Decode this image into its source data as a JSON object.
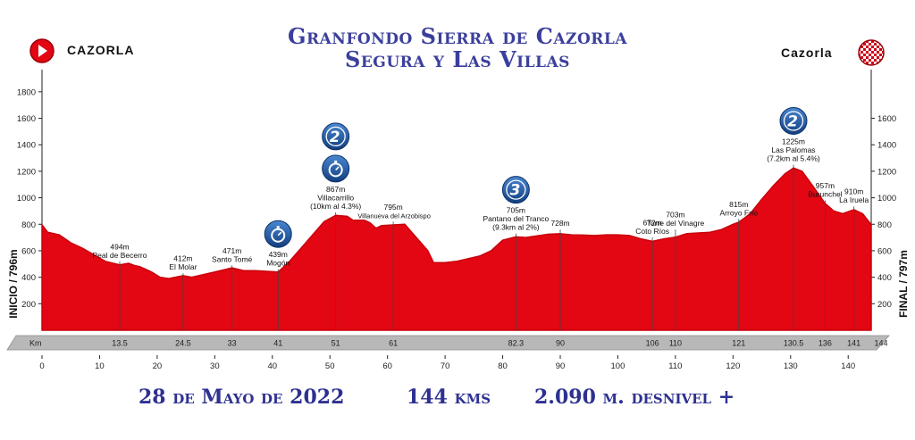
{
  "header": {
    "title_line1": "Granfondo Sierra de Cazorla",
    "title_line2": "Segura y Las Villas",
    "start_town": "CAZORLA",
    "finish_town": "Cazorla"
  },
  "footer": {
    "date": "28 de Mayo de 2022",
    "distance": "144 kms",
    "climbing": "2.090 m. desnivel +"
  },
  "colors": {
    "profile_fill": "#e30613",
    "profile_top": "#c8000a",
    "title_blue": "#3b3f9c",
    "badge_blue": "#1d5aa8",
    "km_bar": "#b8b8b8"
  },
  "chart_data": {
    "type": "area",
    "title": "Granfondo Sierra de Cazorla Segura y Las Villas",
    "xlabel": "",
    "ylabel_left": "INICIO / 796m",
    "ylabel_right": "FINAL / 797m",
    "xlim": [
      0,
      144
    ],
    "ylim": [
      0,
      1900
    ],
    "x_ticks": [
      0,
      10,
      20,
      30,
      40,
      50,
      60,
      70,
      80,
      90,
      100,
      110,
      120,
      130,
      140
    ],
    "y_ticks_left": [
      200,
      400,
      600,
      800,
      1000,
      1200,
      1400,
      1600,
      1800
    ],
    "y_ticks_right": [
      200,
      400,
      600,
      800,
      1000,
      1200,
      1400,
      1600
    ],
    "km_bar_label": "Km",
    "km_bar_marks": [
      "13.5",
      "24.5",
      "33",
      "41",
      "51",
      "61",
      "82.3",
      "90",
      "106",
      "110",
      "121",
      "130.5",
      "136",
      "141",
      "144"
    ],
    "km_bar_positions": [
      13.5,
      24.5,
      33,
      41,
      51,
      61,
      82.3,
      90,
      106,
      110,
      121,
      130.5,
      136,
      141,
      144
    ],
    "profile": [
      [
        0,
        796
      ],
      [
        1,
        740
      ],
      [
        3,
        720
      ],
      [
        5,
        660
      ],
      [
        7,
        620
      ],
      [
        9,
        570
      ],
      [
        11,
        520
      ],
      [
        13.5,
        494
      ],
      [
        15,
        505
      ],
      [
        16,
        490
      ],
      [
        17,
        480
      ],
      [
        19,
        440
      ],
      [
        20.5,
        400
      ],
      [
        22,
        390
      ],
      [
        24.5,
        412
      ],
      [
        26,
        400
      ],
      [
        28,
        420
      ],
      [
        30,
        440
      ],
      [
        33,
        471
      ],
      [
        35,
        450
      ],
      [
        37,
        450
      ],
      [
        39,
        445
      ],
      [
        41,
        439
      ],
      [
        43,
        520
      ],
      [
        45,
        620
      ],
      [
        47,
        720
      ],
      [
        49,
        820
      ],
      [
        51,
        867
      ],
      [
        53,
        860
      ],
      [
        54,
        830
      ],
      [
        56,
        830
      ],
      [
        57,
        810
      ],
      [
        58,
        770
      ],
      [
        59,
        790
      ],
      [
        61,
        795
      ],
      [
        63,
        800
      ],
      [
        65,
        700
      ],
      [
        67,
        600
      ],
      [
        68,
        510
      ],
      [
        70,
        510
      ],
      [
        72,
        520
      ],
      [
        74,
        540
      ],
      [
        76,
        560
      ],
      [
        78,
        600
      ],
      [
        80,
        680
      ],
      [
        82.3,
        705
      ],
      [
        84,
        700
      ],
      [
        86,
        712
      ],
      [
        88,
        725
      ],
      [
        90,
        728
      ],
      [
        92,
        720
      ],
      [
        94,
        718
      ],
      [
        96,
        715
      ],
      [
        98,
        720
      ],
      [
        100,
        720
      ],
      [
        102,
        715
      ],
      [
        104,
        690
      ],
      [
        106,
        672
      ],
      [
        108,
        690
      ],
      [
        110,
        703
      ],
      [
        112,
        730
      ],
      [
        116,
        740
      ],
      [
        118,
        760
      ],
      [
        120,
        800
      ],
      [
        121,
        815
      ],
      [
        123,
        880
      ],
      [
        125,
        990
      ],
      [
        127,
        1090
      ],
      [
        129,
        1180
      ],
      [
        130.5,
        1225
      ],
      [
        132,
        1200
      ],
      [
        134,
        1080
      ],
      [
        136,
        957
      ],
      [
        137.5,
        900
      ],
      [
        139,
        880
      ],
      [
        141,
        910
      ],
      [
        142.5,
        880
      ],
      [
        144,
        797
      ]
    ],
    "points": [
      {
        "km": 13.5,
        "alt_label": "494m",
        "name": "Peal de Becerro",
        "extra": "",
        "label_alt": 520
      },
      {
        "km": 24.5,
        "alt_label": "412m",
        "name": "El Molar",
        "extra": "",
        "label_alt": 430
      },
      {
        "km": 33,
        "alt_label": "471m",
        "name": "Santo Tomé",
        "extra": "",
        "label_alt": 490
      },
      {
        "km": 41,
        "alt_label": "439m",
        "name": "Mogón",
        "extra": "",
        "label_alt": 460
      },
      {
        "km": 51,
        "alt_label": "867m",
        "name": "Villacarrillo",
        "extra": "(10km al 4.3%)",
        "label_alt": 890
      },
      {
        "km": 61,
        "alt_label": "795m",
        "name": "Villanueva del Arzobispo",
        "extra": "",
        "label_alt": 820
      },
      {
        "km": 82.3,
        "alt_label": "705m",
        "name": "Pantano del Tranco",
        "extra": "(9.3km al 2%)",
        "label_alt": 730
      },
      {
        "km": 90,
        "alt_label": "728m",
        "name": "",
        "extra": "",
        "label_alt": 760
      },
      {
        "km": 106,
        "alt_label": "672m",
        "name": "Coto Ríos",
        "extra": "",
        "label_alt": 700
      },
      {
        "km": 110,
        "alt_label": "703m",
        "name": "Torre del Vinagre",
        "extra": "",
        "label_alt": 760
      },
      {
        "km": 121,
        "alt_label": "815m",
        "name": "Arroyo Frío",
        "extra": "",
        "label_alt": 840
      },
      {
        "km": 130.5,
        "alt_label": "1225m",
        "name": "Las Palomas",
        "extra": "(7.2km al 5.4%)",
        "label_alt": 1250
      },
      {
        "km": 136,
        "alt_label": "957m",
        "name": "Burunchel",
        "extra": "",
        "label_alt": 980
      },
      {
        "km": 141,
        "alt_label": "910m",
        "name": "La Iruela",
        "extra": "",
        "label_alt": 935
      }
    ],
    "badges": [
      {
        "km": 41,
        "kind": "timer",
        "text": ""
      },
      {
        "km": 51,
        "kind": "timer",
        "text": ""
      },
      {
        "km": 51,
        "kind": "category",
        "text": "2"
      },
      {
        "km": 82.3,
        "kind": "category",
        "text": "3"
      },
      {
        "km": 130.5,
        "kind": "category",
        "text": "2"
      }
    ]
  }
}
